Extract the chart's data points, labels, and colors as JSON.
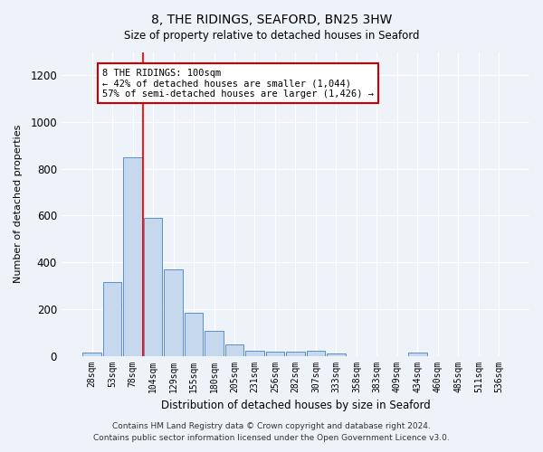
{
  "title": "8, THE RIDINGS, SEAFORD, BN25 3HW",
  "subtitle": "Size of property relative to detached houses in Seaford",
  "xlabel": "Distribution of detached houses by size in Seaford",
  "ylabel": "Number of detached properties",
  "bar_color": "#c5d8ee",
  "bar_edgecolor": "#5b8fc9",
  "categories": [
    "28sqm",
    "53sqm",
    "78sqm",
    "104sqm",
    "129sqm",
    "155sqm",
    "180sqm",
    "205sqm",
    "231sqm",
    "256sqm",
    "282sqm",
    "307sqm",
    "333sqm",
    "358sqm",
    "383sqm",
    "409sqm",
    "434sqm",
    "460sqm",
    "485sqm",
    "511sqm",
    "536sqm"
  ],
  "values": [
    15,
    315,
    850,
    590,
    370,
    185,
    105,
    47,
    22,
    18,
    18,
    20,
    10,
    0,
    0,
    0,
    12,
    0,
    0,
    0,
    0
  ],
  "ylim": [
    0,
    1300
  ],
  "yticks": [
    0,
    200,
    400,
    600,
    800,
    1000,
    1200
  ],
  "redline_index": 3,
  "annotation_line1": "8 THE RIDINGS: 100sqm",
  "annotation_line2": "← 42% of detached houses are smaller (1,044)",
  "annotation_line3": "57% of semi-detached houses are larger (1,426) →",
  "annotation_box_facecolor": "#ffffff",
  "annotation_box_edgecolor": "#cc0000",
  "footer_line1": "Contains HM Land Registry data © Crown copyright and database right 2024.",
  "footer_line2": "Contains public sector information licensed under the Open Government Licence v3.0.",
  "bg_color": "#eef2f9",
  "plot_bg_color": "#eef2f9",
  "grid_color": "#ffffff",
  "spine_color": "#cccccc"
}
